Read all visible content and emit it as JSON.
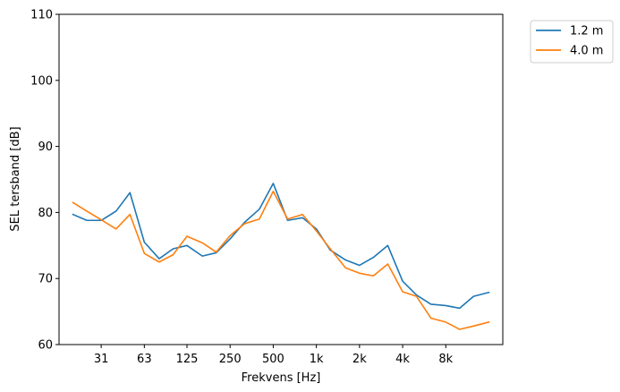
{
  "chart_data": {
    "type": "line",
    "title": "",
    "xlabel": "Frekvens [Hz]",
    "ylabel": "SEL tersband [dB]",
    "ylim": [
      60,
      110
    ],
    "yticks": [
      60,
      70,
      80,
      90,
      100,
      110
    ],
    "x_scale": "log2 (third-octave bands)",
    "x": [
      20,
      25,
      31.5,
      40,
      50,
      63,
      80,
      100,
      125,
      160,
      200,
      250,
      315,
      400,
      500,
      630,
      800,
      1000,
      1250,
      1600,
      2000,
      2500,
      3150,
      4000,
      5000,
      6300,
      8000,
      10000,
      12500,
      16000
    ],
    "xticks": [
      {
        "value": 31.5,
        "label": "31"
      },
      {
        "value": 63,
        "label": "63"
      },
      {
        "value": 125,
        "label": "125"
      },
      {
        "value": 250,
        "label": "250"
      },
      {
        "value": 500,
        "label": "500"
      },
      {
        "value": 1000,
        "label": "1k"
      },
      {
        "value": 2000,
        "label": "2k"
      },
      {
        "value": 4000,
        "label": "4k"
      },
      {
        "value": 8000,
        "label": "8k"
      }
    ],
    "series": [
      {
        "name": "1.2 m",
        "color": "#1f77b4",
        "values": [
          79.7,
          78.8,
          78.8,
          80.2,
          83.0,
          75.5,
          73.0,
          74.5,
          75.0,
          73.4,
          73.9,
          76.0,
          78.5,
          80.5,
          84.4,
          78.8,
          79.2,
          77.5,
          74.3,
          72.8,
          72.0,
          73.2,
          75.0,
          69.6,
          67.5,
          66.1,
          65.9,
          65.5,
          67.3,
          67.9
        ]
      },
      {
        "name": "4.0 m",
        "color": "#ff7f0e",
        "values": [
          81.5,
          80.2,
          78.9,
          77.5,
          79.7,
          73.8,
          72.5,
          73.6,
          76.4,
          75.4,
          74.0,
          76.5,
          78.3,
          79.0,
          83.2,
          79.0,
          79.7,
          77.2,
          74.5,
          71.6,
          70.8,
          70.4,
          72.2,
          68.0,
          67.3,
          64.0,
          63.4,
          62.3,
          62.8,
          63.4
        ]
      }
    ],
    "legend_position": "outside top-right",
    "grid": false
  }
}
